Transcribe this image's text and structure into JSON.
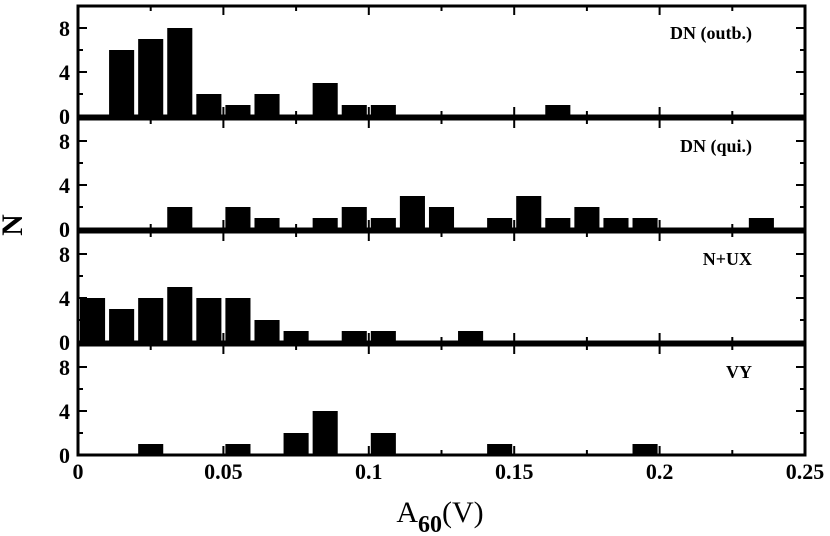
{
  "chart_data": {
    "type": "bar",
    "subtype": "stacked-histogram-panels",
    "xlabel": {
      "main": "A",
      "sub": "60",
      "unit": "(V)"
    },
    "ylabel": "N",
    "xlim": [
      0,
      0.25
    ],
    "xticks": [
      0,
      0.05,
      0.1,
      0.15,
      0.2,
      0.25
    ],
    "xtick_labels": [
      "0",
      "0.05",
      "0.1",
      "0.15",
      "0.2",
      "0.25"
    ],
    "ylim": [
      0,
      10
    ],
    "yticks": [
      0,
      4,
      8
    ],
    "ytick_labels": [
      "0",
      "4",
      "8"
    ],
    "bin_width": 0.01,
    "bar_color": "#000000",
    "panels": [
      {
        "label": "DN (outb.)",
        "bins": [
          {
            "x": 0.015,
            "n": 6
          },
          {
            "x": 0.025,
            "n": 7
          },
          {
            "x": 0.035,
            "n": 8
          },
          {
            "x": 0.045,
            "n": 2
          },
          {
            "x": 0.055,
            "n": 1
          },
          {
            "x": 0.065,
            "n": 2
          },
          {
            "x": 0.085,
            "n": 3
          },
          {
            "x": 0.095,
            "n": 1
          },
          {
            "x": 0.105,
            "n": 1
          },
          {
            "x": 0.165,
            "n": 1
          }
        ]
      },
      {
        "label": "DN (qui.)",
        "bins": [
          {
            "x": 0.035,
            "n": 2
          },
          {
            "x": 0.055,
            "n": 2
          },
          {
            "x": 0.065,
            "n": 1
          },
          {
            "x": 0.085,
            "n": 1
          },
          {
            "x": 0.095,
            "n": 2
          },
          {
            "x": 0.105,
            "n": 1
          },
          {
            "x": 0.115,
            "n": 3
          },
          {
            "x": 0.125,
            "n": 2
          },
          {
            "x": 0.145,
            "n": 1
          },
          {
            "x": 0.155,
            "n": 3
          },
          {
            "x": 0.165,
            "n": 1
          },
          {
            "x": 0.175,
            "n": 2
          },
          {
            "x": 0.185,
            "n": 1
          },
          {
            "x": 0.195,
            "n": 1
          },
          {
            "x": 0.235,
            "n": 1
          }
        ]
      },
      {
        "label": "N+UX",
        "bins": [
          {
            "x": 0.005,
            "n": 4
          },
          {
            "x": 0.015,
            "n": 3
          },
          {
            "x": 0.025,
            "n": 4
          },
          {
            "x": 0.035,
            "n": 5
          },
          {
            "x": 0.045,
            "n": 4
          },
          {
            "x": 0.055,
            "n": 4
          },
          {
            "x": 0.065,
            "n": 2
          },
          {
            "x": 0.075,
            "n": 1
          },
          {
            "x": 0.095,
            "n": 1
          },
          {
            "x": 0.105,
            "n": 1
          },
          {
            "x": 0.135,
            "n": 1
          }
        ]
      },
      {
        "label": "VY",
        "bins": [
          {
            "x": 0.025,
            "n": 1
          },
          {
            "x": 0.055,
            "n": 1
          },
          {
            "x": 0.075,
            "n": 2
          },
          {
            "x": 0.085,
            "n": 4
          },
          {
            "x": 0.105,
            "n": 2
          },
          {
            "x": 0.145,
            "n": 1
          },
          {
            "x": 0.195,
            "n": 1
          }
        ]
      }
    ]
  }
}
